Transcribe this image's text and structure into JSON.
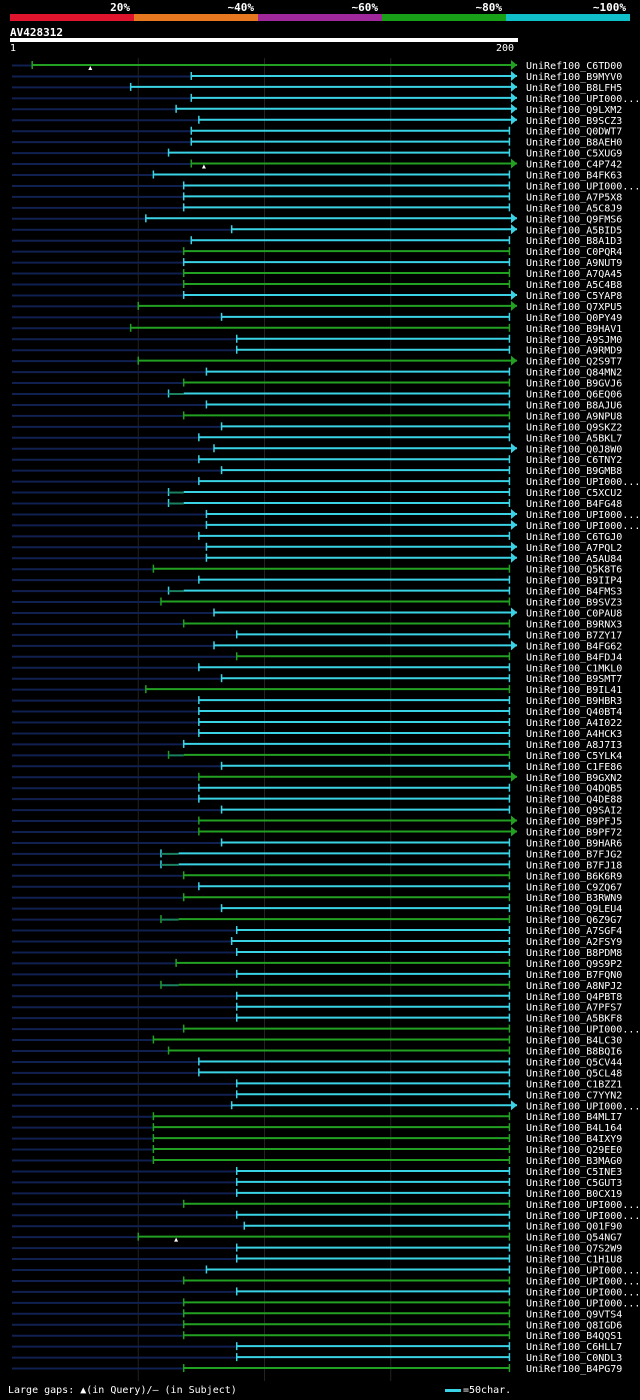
{
  "chart_data": {
    "type": "alignment-overview",
    "query_name": "AV428312",
    "query_start": "1",
    "query_end": "200",
    "query_length": 200,
    "legend": [
      {
        "label": "20%",
        "color": "#e0142c"
      },
      {
        "label": "~40%",
        "color": "#e87820"
      },
      {
        "label": "~60%",
        "color": "#a0289a"
      },
      {
        "label": "~80%",
        "color": "#18a018"
      },
      {
        "label": "~100%",
        "color": "#10c0c8"
      }
    ],
    "colors": {
      "green": "#22a022",
      "cyan": "#3ad3e6",
      "navy": "#102050",
      "gap": "#1a8060"
    },
    "hits": [
      {
        "name": "UniRef100_C6TD00",
        "start": 8,
        "end": 200,
        "color": "green",
        "arrow": true,
        "gap": 31
      },
      {
        "name": "UniRef100_B9MYV0",
        "start": 71,
        "end": 200,
        "color": "cyan",
        "arrow": true
      },
      {
        "name": "UniRef100_B8LFH5",
        "start": 47,
        "end": 200,
        "color": "cyan",
        "arrow": true
      },
      {
        "name": "UniRef100_UPI000...",
        "start": 71,
        "end": 200,
        "color": "cyan",
        "arrow": true
      },
      {
        "name": "UniRef100_Q9LXM2",
        "start": 65,
        "end": 200,
        "color": "cyan",
        "arrow": true
      },
      {
        "name": "UniRef100_B9SCZ3",
        "start": 74,
        "end": 200,
        "color": "cyan",
        "arrow": true
      },
      {
        "name": "UniRef100_Q0DWT7",
        "start": 71,
        "end": 197,
        "color": "cyan",
        "arrow": false
      },
      {
        "name": "UniRef100_B8AEH0",
        "start": 71,
        "end": 197,
        "color": "cyan",
        "arrow": false
      },
      {
        "name": "UniRef100_C5XUG9",
        "start": 62,
        "end": 197,
        "color": "cyan",
        "arrow": false
      },
      {
        "name": "UniRef100_C4P742",
        "start": 71,
        "end": 200,
        "color": "green",
        "arrow": true,
        "gap": 76
      },
      {
        "name": "UniRef100_B4FK63",
        "start": 56,
        "end": 197,
        "color": "cyan",
        "arrow": false
      },
      {
        "name": "UniRef100_UPI000...",
        "start": 68,
        "end": 197,
        "color": "cyan",
        "arrow": false
      },
      {
        "name": "UniRef100_A7P5X8",
        "start": 68,
        "end": 197,
        "color": "cyan",
        "arrow": false
      },
      {
        "name": "UniRef100_A5C8J9",
        "start": 68,
        "end": 197,
        "color": "cyan",
        "arrow": false
      },
      {
        "name": "UniRef100_Q9FMS6",
        "start": 53,
        "end": 200,
        "color": "cyan",
        "arrow": true
      },
      {
        "name": "UniRef100_A5BID5",
        "start": 87,
        "end": 200,
        "color": "cyan",
        "arrow": true
      },
      {
        "name": "UniRef100_B8A1D3",
        "start": 71,
        "end": 197,
        "color": "cyan",
        "arrow": false
      },
      {
        "name": "UniRef100_C0PQR4",
        "start": 68,
        "end": 197,
        "color": "green",
        "arrow": false
      },
      {
        "name": "UniRef100_A9NUT9",
        "start": 68,
        "end": 197,
        "color": "cyan",
        "arrow": false
      },
      {
        "name": "UniRef100_A7QA45",
        "start": 68,
        "end": 197,
        "color": "green",
        "arrow": false
      },
      {
        "name": "UniRef100_A5C4B8",
        "start": 68,
        "end": 197,
        "color": "green",
        "arrow": false
      },
      {
        "name": "UniRef100_C5YAP8",
        "start": 68,
        "end": 200,
        "color": "cyan",
        "arrow": true
      },
      {
        "name": "UniRef100_Q7XPU5",
        "start": 50,
        "end": 200,
        "color": "green",
        "arrow": true
      },
      {
        "name": "UniRef100_Q0PY49",
        "start": 83,
        "end": 197,
        "color": "cyan",
        "arrow": false
      },
      {
        "name": "UniRef100_B9HAV1",
        "start": 47,
        "end": 197,
        "color": "green",
        "arrow": false
      },
      {
        "name": "UniRef100_A9SJM0",
        "start": 89,
        "end": 197,
        "color": "cyan",
        "arrow": false
      },
      {
        "name": "UniRef100_A9RMD9",
        "start": 89,
        "end": 197,
        "color": "cyan",
        "arrow": false
      },
      {
        "name": "UniRef100_Q2S9T7",
        "start": 50,
        "end": 200,
        "color": "green",
        "arrow": true
      },
      {
        "name": "UniRef100_Q84MN2",
        "start": 77,
        "end": 197,
        "color": "cyan",
        "arrow": false
      },
      {
        "name": "UniRef100_B9GVJ6",
        "start": 68,
        "end": 197,
        "color": "green",
        "arrow": false
      },
      {
        "name": "UniRef100_Q6EQ06",
        "start": 62,
        "end": 197,
        "color": "cyan",
        "arrow": false,
        "gapline": [
          62,
          68
        ]
      },
      {
        "name": "UniRef100_B8AJU6",
        "start": 77,
        "end": 197,
        "color": "cyan",
        "arrow": false
      },
      {
        "name": "UniRef100_A9NPU8",
        "start": 68,
        "end": 197,
        "color": "green",
        "arrow": false
      },
      {
        "name": "UniRef100_Q9SKZ2",
        "start": 83,
        "end": 197,
        "color": "cyan",
        "arrow": false
      },
      {
        "name": "UniRef100_A5BKL7",
        "start": 74,
        "end": 197,
        "color": "cyan",
        "arrow": false
      },
      {
        "name": "UniRef100_Q0J8W0",
        "start": 80,
        "end": 200,
        "color": "cyan",
        "arrow": true
      },
      {
        "name": "UniRef100_C6TNY2",
        "start": 74,
        "end": 197,
        "color": "cyan",
        "arrow": false
      },
      {
        "name": "UniRef100_B9GMB8",
        "start": 83,
        "end": 197,
        "color": "cyan",
        "arrow": false
      },
      {
        "name": "UniRef100_UPI000...",
        "start": 74,
        "end": 197,
        "color": "cyan",
        "arrow": false
      },
      {
        "name": "UniRef100_C5XCU2",
        "start": 62,
        "end": 197,
        "color": "cyan",
        "arrow": false,
        "gapline": [
          62,
          68
        ]
      },
      {
        "name": "UniRef100_B4FG48",
        "start": 62,
        "end": 197,
        "color": "cyan",
        "arrow": false,
        "gapline": [
          62,
          68
        ]
      },
      {
        "name": "UniRef100_UPI000...",
        "start": 77,
        "end": 200,
        "color": "cyan",
        "arrow": true
      },
      {
        "name": "UniRef100_UPI000...",
        "start": 77,
        "end": 200,
        "color": "cyan",
        "arrow": true
      },
      {
        "name": "UniRef100_C6TGJ0",
        "start": 74,
        "end": 197,
        "color": "cyan",
        "arrow": false
      },
      {
        "name": "UniRef100_A7PQL2",
        "start": 77,
        "end": 200,
        "color": "cyan",
        "arrow": true
      },
      {
        "name": "UniRef100_A5AU84",
        "start": 77,
        "end": 200,
        "color": "cyan",
        "arrow": true
      },
      {
        "name": "UniRef100_Q5K8T6",
        "start": 56,
        "end": 197,
        "color": "green",
        "arrow": false
      },
      {
        "name": "UniRef100_B9IIP4",
        "start": 74,
        "end": 197,
        "color": "cyan",
        "arrow": false
      },
      {
        "name": "UniRef100_B4FMS3",
        "start": 62,
        "end": 197,
        "color": "cyan",
        "arrow": false,
        "gapline": [
          62,
          68
        ]
      },
      {
        "name": "UniRef100_B9SVZ3",
        "start": 59,
        "end": 197,
        "color": "green",
        "arrow": false
      },
      {
        "name": "UniRef100_C0PAU8",
        "start": 80,
        "end": 200,
        "color": "cyan",
        "arrow": true
      },
      {
        "name": "UniRef100_B9RNX3",
        "start": 68,
        "end": 197,
        "color": "green",
        "arrow": false
      },
      {
        "name": "UniRef100_B7ZY17",
        "start": 89,
        "end": 197,
        "color": "cyan",
        "arrow": false
      },
      {
        "name": "UniRef100_B4FG62",
        "start": 80,
        "end": 200,
        "color": "cyan",
        "arrow": true
      },
      {
        "name": "UniRef100_B4FDJ4",
        "start": 89,
        "end": 197,
        "color": "green",
        "arrow": false
      },
      {
        "name": "UniRef100_C1MKL0",
        "start": 74,
        "end": 197,
        "color": "cyan",
        "arrow": false
      },
      {
        "name": "UniRef100_B9SMT7",
        "start": 83,
        "end": 197,
        "color": "cyan",
        "arrow": false
      },
      {
        "name": "UniRef100_B9IL41",
        "start": 53,
        "end": 197,
        "color": "green",
        "arrow": false
      },
      {
        "name": "UniRef100_B9HBR3",
        "start": 74,
        "end": 197,
        "color": "cyan",
        "arrow": false
      },
      {
        "name": "UniRef100_Q40BT4",
        "start": 74,
        "end": 197,
        "color": "cyan",
        "arrow": false
      },
      {
        "name": "UniRef100_A4I022",
        "start": 74,
        "end": 197,
        "color": "cyan",
        "arrow": false
      },
      {
        "name": "UniRef100_A4HCK3",
        "start": 74,
        "end": 197,
        "color": "cyan",
        "arrow": false
      },
      {
        "name": "UniRef100_A8J7I3",
        "start": 68,
        "end": 197,
        "color": "cyan",
        "arrow": false
      },
      {
        "name": "UniRef100_C5YLK4",
        "start": 62,
        "end": 197,
        "color": "green",
        "arrow": false,
        "gapline": [
          62,
          68
        ]
      },
      {
        "name": "UniRef100_C1FE86",
        "start": 83,
        "end": 197,
        "color": "cyan",
        "arrow": false
      },
      {
        "name": "UniRef100_B9GXN2",
        "start": 74,
        "end": 200,
        "color": "green",
        "arrow": true
      },
      {
        "name": "UniRef100_Q4DQB5",
        "start": 74,
        "end": 197,
        "color": "cyan",
        "arrow": false
      },
      {
        "name": "UniRef100_Q4DE88",
        "start": 74,
        "end": 197,
        "color": "cyan",
        "arrow": false
      },
      {
        "name": "UniRef100_Q9SAI2",
        "start": 83,
        "end": 197,
        "color": "cyan",
        "arrow": false
      },
      {
        "name": "UniRef100_B9PFJ5",
        "start": 74,
        "end": 200,
        "color": "green",
        "arrow": true
      },
      {
        "name": "UniRef100_B9PF72",
        "start": 74,
        "end": 200,
        "color": "green",
        "arrow": true
      },
      {
        "name": "UniRef100_B9HAR6",
        "start": 83,
        "end": 197,
        "color": "cyan",
        "arrow": false
      },
      {
        "name": "UniRef100_B7FJG2",
        "start": 59,
        "end": 197,
        "color": "cyan",
        "arrow": false,
        "gapline": [
          59,
          66
        ]
      },
      {
        "name": "UniRef100_B7FJ18",
        "start": 59,
        "end": 197,
        "color": "cyan",
        "arrow": false,
        "gapline": [
          59,
          66
        ]
      },
      {
        "name": "UniRef100_B6K6R9",
        "start": 68,
        "end": 197,
        "color": "green",
        "arrow": false
      },
      {
        "name": "UniRef100_C9ZQ67",
        "start": 74,
        "end": 197,
        "color": "cyan",
        "arrow": false
      },
      {
        "name": "UniRef100_B3RWN9",
        "start": 68,
        "end": 197,
        "color": "green",
        "arrow": false
      },
      {
        "name": "UniRef100_Q9LEU4",
        "start": 83,
        "end": 197,
        "color": "cyan",
        "arrow": false
      },
      {
        "name": "UniRef100_Q6Z9G7",
        "start": 59,
        "end": 197,
        "color": "green",
        "arrow": false,
        "gapline": [
          59,
          66
        ]
      },
      {
        "name": "UniRef100_A7SGF4",
        "start": 89,
        "end": 197,
        "color": "cyan",
        "arrow": false
      },
      {
        "name": "UniRef100_A2FSY9",
        "start": 87,
        "end": 197,
        "color": "cyan",
        "arrow": false
      },
      {
        "name": "UniRef100_B8PDM8",
        "start": 89,
        "end": 197,
        "color": "cyan",
        "arrow": false
      },
      {
        "name": "UniRef100_Q9S9P2",
        "start": 65,
        "end": 197,
        "color": "green",
        "arrow": false
      },
      {
        "name": "UniRef100_B7FQN0",
        "start": 89,
        "end": 197,
        "color": "cyan",
        "arrow": false
      },
      {
        "name": "UniRef100_A8NPJ2",
        "start": 59,
        "end": 197,
        "color": "green",
        "arrow": false,
        "gapline": [
          59,
          66
        ]
      },
      {
        "name": "UniRef100_Q4PBT8",
        "start": 89,
        "end": 197,
        "color": "cyan",
        "arrow": false
      },
      {
        "name": "UniRef100_A7PFS7",
        "start": 89,
        "end": 197,
        "color": "cyan",
        "arrow": false
      },
      {
        "name": "UniRef100_A5BKF8",
        "start": 89,
        "end": 197,
        "color": "cyan",
        "arrow": false
      },
      {
        "name": "UniRef100_UPI000...",
        "start": 68,
        "end": 197,
        "color": "green",
        "arrow": false
      },
      {
        "name": "UniRef100_B4LC30",
        "start": 56,
        "end": 197,
        "color": "green",
        "arrow": false
      },
      {
        "name": "UniRef100_B8BQI6",
        "start": 62,
        "end": 197,
        "color": "green",
        "arrow": false
      },
      {
        "name": "UniRef100_Q5CV44",
        "start": 74,
        "end": 197,
        "color": "cyan",
        "arrow": false
      },
      {
        "name": "UniRef100_Q5CL48",
        "start": 74,
        "end": 197,
        "color": "cyan",
        "arrow": false
      },
      {
        "name": "UniRef100_C1BZZ1",
        "start": 89,
        "end": 197,
        "color": "cyan",
        "arrow": false
      },
      {
        "name": "UniRef100_C7YYN2",
        "start": 89,
        "end": 197,
        "color": "cyan",
        "arrow": false
      },
      {
        "name": "UniRef100_UPI000...",
        "start": 87,
        "end": 200,
        "color": "cyan",
        "arrow": true
      },
      {
        "name": "UniRef100_B4MLI7",
        "start": 56,
        "end": 197,
        "color": "green",
        "arrow": false
      },
      {
        "name": "UniRef100_B4L164",
        "start": 56,
        "end": 197,
        "color": "green",
        "arrow": false
      },
      {
        "name": "UniRef100_B4IXY9",
        "start": 56,
        "end": 197,
        "color": "green",
        "arrow": false
      },
      {
        "name": "UniRef100_Q29EE0",
        "start": 56,
        "end": 197,
        "color": "green",
        "arrow": false
      },
      {
        "name": "UniRef100_B3MAG0",
        "start": 56,
        "end": 197,
        "color": "green",
        "arrow": false
      },
      {
        "name": "UniRef100_C5INE3",
        "start": 89,
        "end": 197,
        "color": "cyan",
        "arrow": false
      },
      {
        "name": "UniRef100_C5GUT3",
        "start": 89,
        "end": 197,
        "color": "cyan",
        "arrow": false
      },
      {
        "name": "UniRef100_B0CX19",
        "start": 89,
        "end": 197,
        "color": "cyan",
        "arrow": false
      },
      {
        "name": "UniRef100_UPI000...",
        "start": 68,
        "end": 197,
        "color": "green",
        "arrow": false
      },
      {
        "name": "UniRef100_UPI000...",
        "start": 89,
        "end": 197,
        "color": "cyan",
        "arrow": false
      },
      {
        "name": "UniRef100_Q01F90",
        "start": 92,
        "end": 197,
        "color": "cyan",
        "arrow": false
      },
      {
        "name": "UniRef100_Q54NG7",
        "start": 50,
        "end": 197,
        "color": "green",
        "arrow": false,
        "gap": 65
      },
      {
        "name": "UniRef100_Q7S2W9",
        "start": 89,
        "end": 197,
        "color": "cyan",
        "arrow": false
      },
      {
        "name": "UniRef100_C1H1U8",
        "start": 89,
        "end": 197,
        "color": "cyan",
        "arrow": false
      },
      {
        "name": "UniRef100_UPI000...",
        "start": 77,
        "end": 197,
        "color": "cyan",
        "arrow": false
      },
      {
        "name": "UniRef100_UPI000...",
        "start": 68,
        "end": 197,
        "color": "green",
        "arrow": false
      },
      {
        "name": "UniRef100_UPI000...",
        "start": 89,
        "end": 197,
        "color": "cyan",
        "arrow": false
      },
      {
        "name": "UniRef100_UPI000...",
        "start": 68,
        "end": 197,
        "color": "green",
        "arrow": false
      },
      {
        "name": "UniRef100_Q9VTS4",
        "start": 68,
        "end": 197,
        "color": "green",
        "arrow": false
      },
      {
        "name": "UniRef100_Q8IGD6",
        "start": 68,
        "end": 197,
        "color": "green",
        "arrow": false
      },
      {
        "name": "UniRef100_B4QQS1",
        "start": 68,
        "end": 197,
        "color": "green",
        "arrow": false
      },
      {
        "name": "UniRef100_C6HLL7",
        "start": 89,
        "end": 197,
        "color": "cyan",
        "arrow": false
      },
      {
        "name": "UniRef100_C0NDL3",
        "start": 89,
        "end": 197,
        "color": "cyan",
        "arrow": false
      },
      {
        "name": "UniRef100_B4PG79",
        "start": 68,
        "end": 197,
        "color": "green",
        "arrow": false
      }
    ]
  },
  "footer": {
    "gaps_label": "Large gaps: ▲(in Query)/– (in Subject)",
    "scale_label": "=50char."
  }
}
